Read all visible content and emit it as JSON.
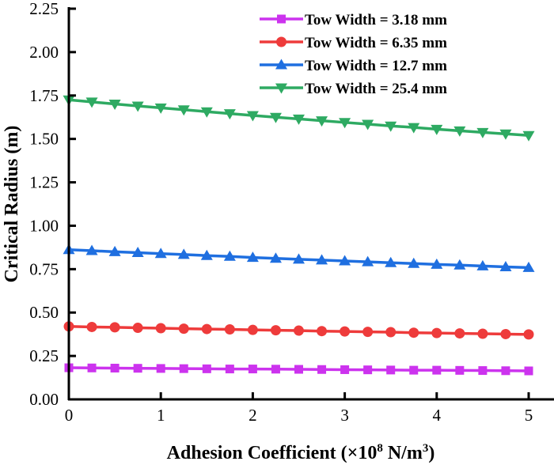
{
  "chart_data": {
    "type": "line",
    "title": "",
    "xlabel": "Adhesion Coefficient (×10",
    "xlabel_sup1": "8",
    "xlabel_mid": " N/m",
    "xlabel_sup2": "3",
    "xlabel_end": ")",
    "ylabel": "Critical Radius (m)",
    "xlim": [
      0,
      5
    ],
    "ylim": [
      0,
      2.25
    ],
    "xticks": [
      "0",
      "1",
      "2",
      "3",
      "4",
      "5"
    ],
    "xtick_values": [
      0,
      1,
      2,
      3,
      4,
      5
    ],
    "yticks": [
      "0.00",
      "0.25",
      "0.50",
      "0.75",
      "1.00",
      "1.25",
      "1.50",
      "1.75",
      "2.00",
      "2.25"
    ],
    "ytick_values": [
      0,
      0.25,
      0.5,
      0.75,
      1.0,
      1.25,
      1.5,
      1.75,
      2.0,
      2.25
    ],
    "grid": false,
    "legend_position": "top-right",
    "x": [
      0,
      0.25,
      0.5,
      0.75,
      1.0,
      1.25,
      1.5,
      1.75,
      2.0,
      2.25,
      2.5,
      2.75,
      3.0,
      3.25,
      3.5,
      3.75,
      4.0,
      4.25,
      4.5,
      4.75,
      5.0
    ],
    "series": [
      {
        "name": "Tow Width = 3.18 mm",
        "color": "#cc33ee",
        "marker": "square",
        "values": [
          0.182,
          0.181,
          0.18,
          0.179,
          0.178,
          0.177,
          0.176,
          0.175,
          0.175,
          0.174,
          0.173,
          0.172,
          0.171,
          0.17,
          0.169,
          0.168,
          0.168,
          0.167,
          0.166,
          0.165,
          0.164
        ]
      },
      {
        "name": "Tow Width = 6.35 mm",
        "color": "#ee3b3b",
        "marker": "circle",
        "values": [
          0.42,
          0.417,
          0.415,
          0.412,
          0.41,
          0.407,
          0.405,
          0.403,
          0.4,
          0.398,
          0.396,
          0.393,
          0.391,
          0.389,
          0.387,
          0.384,
          0.382,
          0.38,
          0.378,
          0.376,
          0.374
        ]
      },
      {
        "name": "Tow Width = 12.7 mm",
        "color": "#1f6fe0",
        "marker": "triangle-up",
        "values": [
          0.862,
          0.856,
          0.85,
          0.845,
          0.839,
          0.834,
          0.828,
          0.823,
          0.817,
          0.812,
          0.807,
          0.802,
          0.797,
          0.792,
          0.787,
          0.782,
          0.777,
          0.773,
          0.768,
          0.763,
          0.759
        ]
      },
      {
        "name": "Tow Width = 25.4 mm",
        "color": "#2eaa62",
        "marker": "triangle-down",
        "values": [
          1.725,
          1.713,
          1.701,
          1.69,
          1.679,
          1.668,
          1.657,
          1.646,
          1.635,
          1.625,
          1.615,
          1.605,
          1.595,
          1.585,
          1.575,
          1.566,
          1.556,
          1.547,
          1.538,
          1.529,
          1.52
        ]
      }
    ]
  }
}
